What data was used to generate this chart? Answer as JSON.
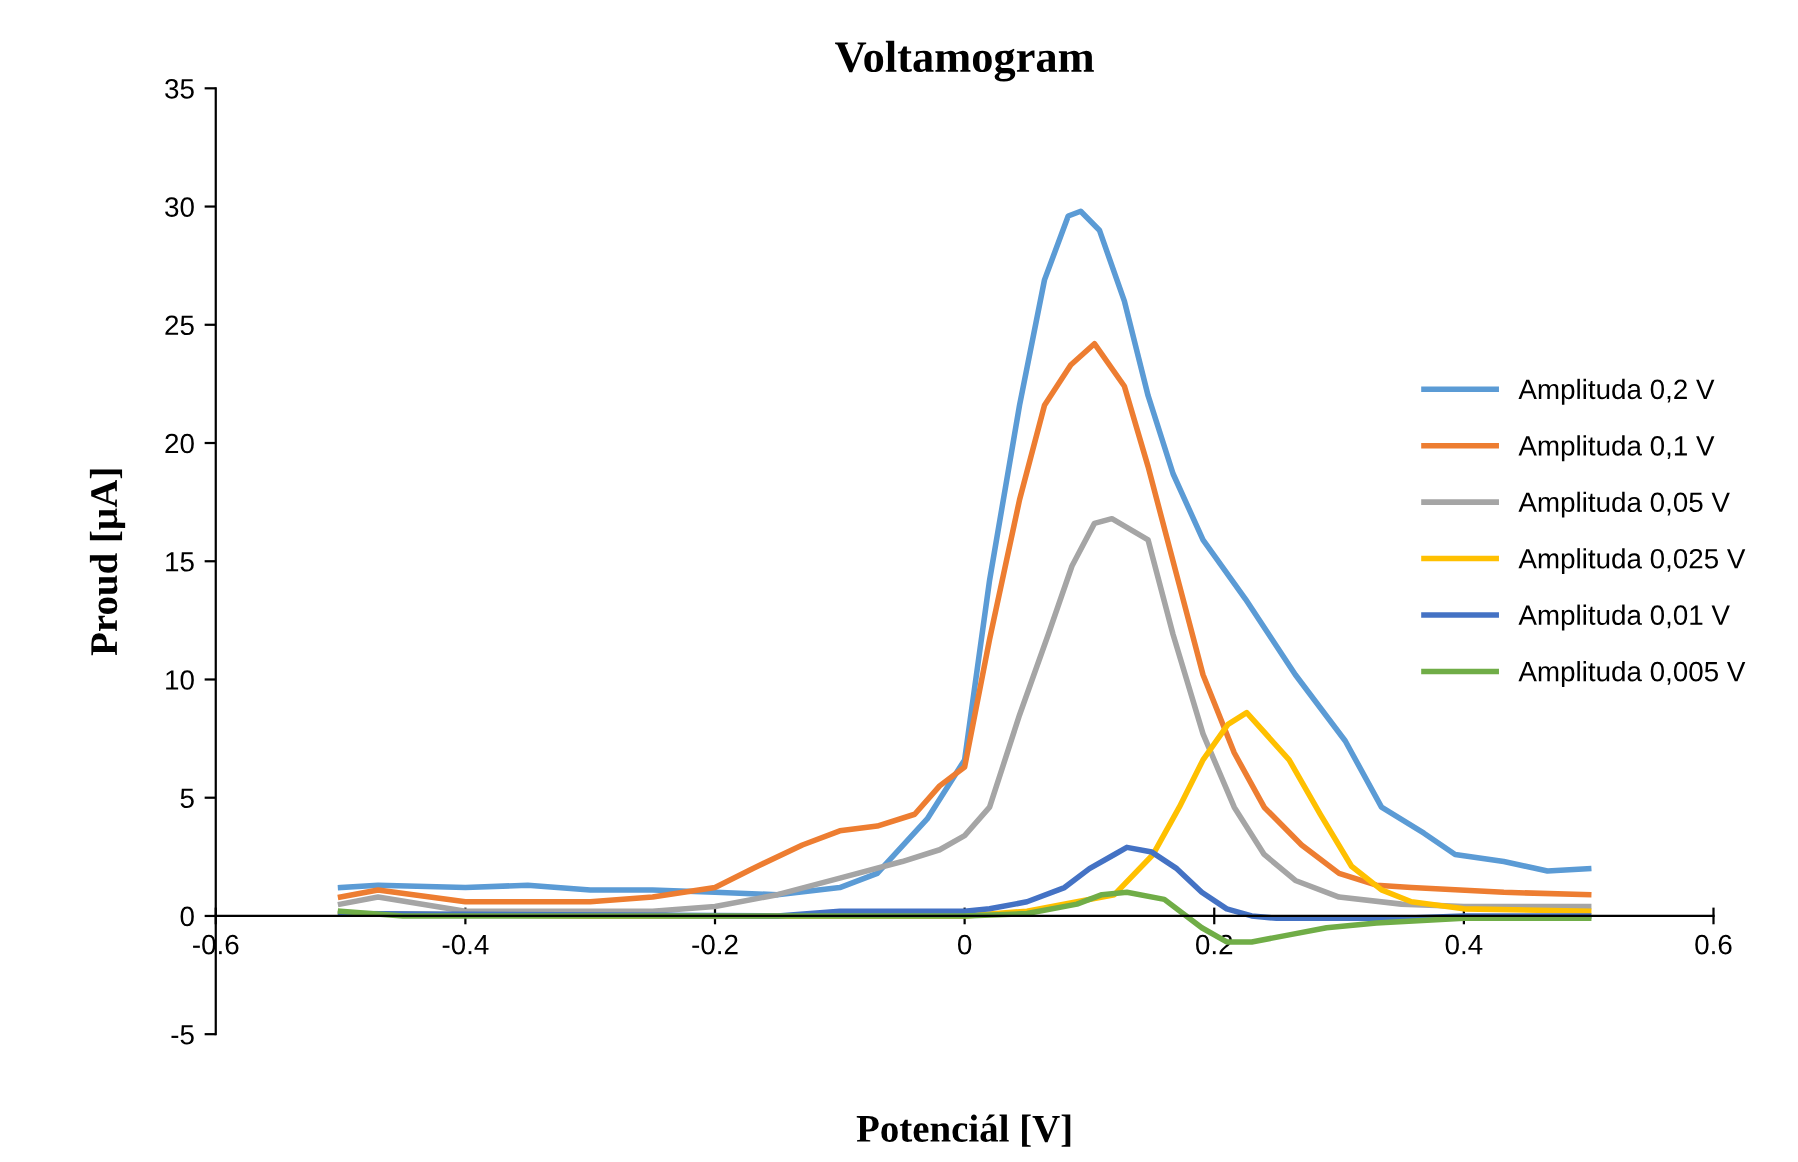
{
  "chart_data": {
    "type": "line",
    "title": "Voltamogram",
    "xlabel": "Potenciál [V]",
    "ylabel": "Proud [µA]",
    "xlim": [
      -0.6,
      0.6
    ],
    "xticks": [
      -0.6,
      -0.4,
      -0.2,
      0,
      0.2,
      0.4,
      0.6
    ],
    "ylim": [
      -5,
      35
    ],
    "yticks": [
      -5,
      0,
      5,
      10,
      15,
      20,
      25,
      30,
      35
    ],
    "grid": false,
    "legend": "right",
    "marker": "none",
    "line_style": "solid",
    "series": [
      {
        "name": "Amplituda 0,2 V",
        "color": "#5b9bd5",
        "x": [
          -0.5,
          -0.47,
          -0.4,
          -0.35,
          -0.3,
          -0.25,
          -0.2,
          -0.15,
          -0.1,
          -0.07,
          -0.03,
          0,
          0.02,
          0.044,
          0.064,
          0.083,
          0.093,
          0.108,
          0.128,
          0.147,
          0.167,
          0.191,
          0.225,
          0.265,
          0.305,
          0.334,
          0.368,
          0.393,
          0.432,
          0.467,
          0.5
        ],
        "values": [
          1.2,
          1.3,
          1.2,
          1.3,
          1.1,
          1.1,
          1.0,
          0.9,
          1.2,
          1.8,
          4.1,
          6.6,
          14.2,
          21.6,
          26.9,
          29.6,
          29.8,
          29.0,
          26.0,
          22.0,
          18.7,
          15.9,
          13.4,
          10.2,
          7.4,
          4.6,
          3.5,
          2.6,
          2.3,
          1.9,
          2.0
        ]
      },
      {
        "name": "Amplituda 0,1 V",
        "color": "#ed7d31",
        "x": [
          -0.5,
          -0.47,
          -0.4,
          -0.3,
          -0.25,
          -0.2,
          -0.17,
          -0.13,
          -0.1,
          -0.07,
          -0.04,
          -0.02,
          0,
          0.02,
          0.044,
          0.064,
          0.085,
          0.104,
          0.128,
          0.147,
          0.172,
          0.191,
          0.216,
          0.24,
          0.27,
          0.3,
          0.33,
          0.358,
          0.432,
          0.5
        ],
        "values": [
          0.8,
          1.1,
          0.6,
          0.6,
          0.8,
          1.2,
          2.0,
          3.0,
          3.6,
          3.8,
          4.3,
          5.5,
          6.3,
          11.7,
          17.6,
          21.6,
          23.3,
          24.2,
          22.4,
          19.0,
          14.0,
          10.2,
          6.9,
          4.6,
          3.0,
          1.8,
          1.3,
          1.2,
          1.0,
          0.9
        ]
      },
      {
        "name": "Amplituda 0,05 V",
        "color": "#a5a5a5",
        "x": [
          -0.5,
          -0.47,
          -0.4,
          -0.3,
          -0.25,
          -0.2,
          -0.15,
          -0.1,
          -0.05,
          -0.02,
          0,
          0.02,
          0.044,
          0.067,
          0.086,
          0.104,
          0.118,
          0.147,
          0.167,
          0.191,
          0.216,
          0.24,
          0.265,
          0.3,
          0.35,
          0.4,
          0.5
        ],
        "values": [
          0.5,
          0.8,
          0.2,
          0.2,
          0.2,
          0.4,
          0.9,
          1.6,
          2.3,
          2.8,
          3.4,
          4.6,
          8.5,
          11.9,
          14.8,
          16.6,
          16.8,
          15.9,
          11.9,
          7.7,
          4.6,
          2.6,
          1.5,
          0.8,
          0.5,
          0.4,
          0.4
        ]
      },
      {
        "name": "Amplituda 0,025 V",
        "color": "#ffc000",
        "x": [
          -0.5,
          -0.3,
          0,
          0.05,
          0.09,
          0.12,
          0.151,
          0.172,
          0.191,
          0.211,
          0.226,
          0.26,
          0.285,
          0.31,
          0.334,
          0.358,
          0.4,
          0.5
        ],
        "values": [
          0.1,
          0.0,
          0.0,
          0.2,
          0.6,
          0.9,
          2.6,
          4.6,
          6.6,
          8.1,
          8.6,
          6.6,
          4.3,
          2.1,
          1.1,
          0.6,
          0.3,
          0.2
        ]
      },
      {
        "name": "Amplituda 0,01 V",
        "color": "#4472c4",
        "x": [
          -0.5,
          -0.15,
          -0.1,
          0,
          0.02,
          0.05,
          0.08,
          0.1,
          0.12,
          0.13,
          0.15,
          0.17,
          0.19,
          0.21,
          0.23,
          0.25,
          0.35,
          0.4,
          0.5
        ],
        "values": [
          0.1,
          0.0,
          0.2,
          0.2,
          0.3,
          0.6,
          1.2,
          2.0,
          2.6,
          2.9,
          2.7,
          2.0,
          1.0,
          0.3,
          0.0,
          -0.1,
          -0.1,
          0.0,
          0.0
        ]
      },
      {
        "name": "Amplituda 0,005 V",
        "color": "#70ad47",
        "x": [
          -0.5,
          -0.45,
          0,
          0.05,
          0.09,
          0.11,
          0.13,
          0.16,
          0.19,
          0.21,
          0.23,
          0.26,
          0.29,
          0.33,
          0.4,
          0.5
        ],
        "values": [
          0.2,
          0.0,
          0.0,
          0.1,
          0.5,
          0.9,
          1.0,
          0.7,
          -0.5,
          -1.1,
          -1.1,
          -0.8,
          -0.5,
          -0.3,
          -0.1,
          -0.1
        ]
      }
    ]
  }
}
